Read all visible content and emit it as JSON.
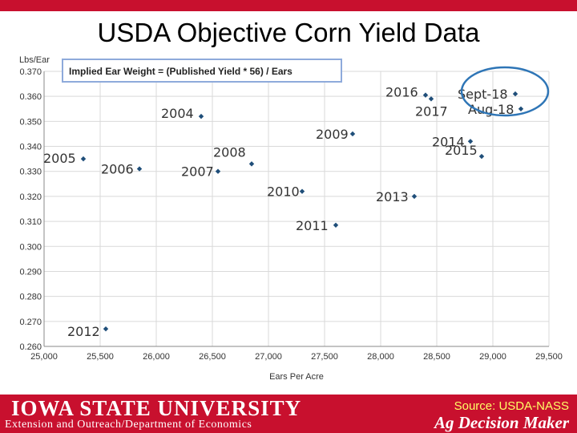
{
  "slide": {
    "title": "USDA Objective Corn Yield Data"
  },
  "footer": {
    "logo_text": "IOWA STATE UNIVERSITY",
    "department": "Extension and Outreach/Department of Economics",
    "source": "Source: USDA-NASS",
    "product": "Ag Decision Maker"
  },
  "colors": {
    "brand_red": "#c8102e",
    "marker": "#1f4e79",
    "highlight_circle": "#2e75b6"
  },
  "chart_data": {
    "type": "scatter",
    "title": "",
    "ylabel": "Lbs/Ear",
    "xlabel": "Ears Per Acre",
    "annotation": "Implied Ear Weight = (Published Yield * 56) / Ears",
    "xlim": [
      25000,
      29500
    ],
    "ylim": [
      0.26,
      0.37
    ],
    "grid": true,
    "x_ticks": [
      "25,000",
      "25,500",
      "26,000",
      "26,500",
      "27,000",
      "27,500",
      "28,000",
      "28,500",
      "29,000",
      "29,500"
    ],
    "y_ticks": [
      "0.260",
      "0.270",
      "0.280",
      "0.290",
      "0.300",
      "0.310",
      "0.320",
      "0.330",
      "0.340",
      "0.350",
      "0.360",
      "0.370"
    ],
    "points": [
      {
        "label": "2004",
        "x": 26400,
        "y": 0.352
      },
      {
        "label": "2005",
        "x": 25350,
        "y": 0.335
      },
      {
        "label": "2006",
        "x": 25850,
        "y": 0.331
      },
      {
        "label": "2007",
        "x": 26550,
        "y": 0.33
      },
      {
        "label": "2008",
        "x": 26850,
        "y": 0.333
      },
      {
        "label": "2009",
        "x": 27750,
        "y": 0.345
      },
      {
        "label": "2010",
        "x": 27300,
        "y": 0.322
      },
      {
        "label": "2011",
        "x": 27600,
        "y": 0.3085
      },
      {
        "label": "2012",
        "x": 25550,
        "y": 0.267
      },
      {
        "label": "2013",
        "x": 28300,
        "y": 0.32
      },
      {
        "label": "2014",
        "x": 28800,
        "y": 0.342
      },
      {
        "label": "2015",
        "x": 28900,
        "y": 0.336
      },
      {
        "label": "2016",
        "x": 28400,
        "y": 0.3605
      },
      {
        "label": "2017",
        "x": 28450,
        "y": 0.359
      },
      {
        "label": "Aug-18",
        "x": 29250,
        "y": 0.355
      },
      {
        "label": "Sept-18",
        "x": 29200,
        "y": 0.361
      }
    ],
    "highlight": [
      "Aug-18",
      "Sept-18"
    ]
  }
}
